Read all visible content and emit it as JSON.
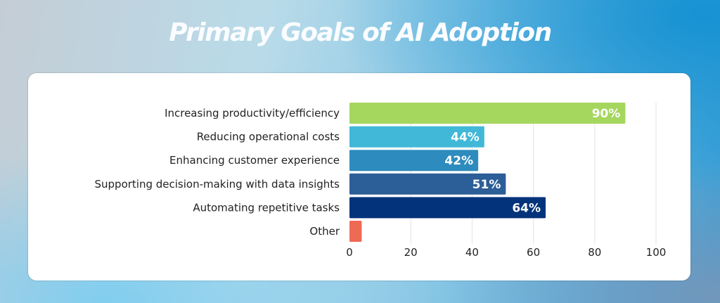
{
  "chart_data": {
    "type": "bar",
    "orientation": "horizontal",
    "title": "Primary Goals of AI Adoption",
    "categories": [
      "Increasing productivity/efficiency",
      "Reducing operational costs",
      "Enhancing customer experience",
      "Supporting decision-making with data insights",
      "Automating repetitive tasks",
      "Other"
    ],
    "values": [
      90,
      44,
      42,
      51,
      64,
      4
    ],
    "data_labels": [
      "90%",
      "44%",
      "42%",
      "51%",
      "64%",
      ""
    ],
    "colors": [
      "#a5d65e",
      "#41b8d8",
      "#2e8bbd",
      "#2c5e98",
      "#03337a",
      "#ee6a55"
    ],
    "xlim": [
      0,
      100
    ],
    "xticks": [
      "0",
      "20",
      "40",
      "60",
      "80",
      "100"
    ],
    "xlabel": "",
    "ylabel": "",
    "grid": "vertical"
  }
}
